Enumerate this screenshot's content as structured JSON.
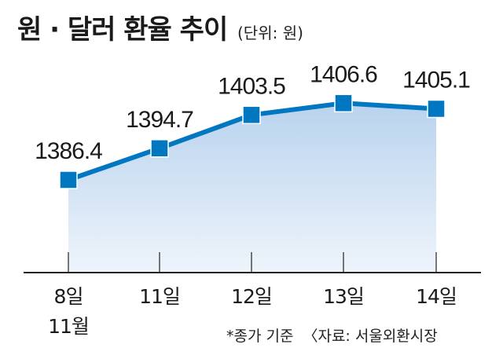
{
  "header": {
    "title": "원 · 달러 환율 추이",
    "unit": "(단위: 원)"
  },
  "footer": {
    "note": "*종가 기준",
    "source": "〈자료: 서울외환시장"
  },
  "colors": {
    "line": "#0077c0",
    "marker": "#0077c0",
    "area_top": "#b9d3ee",
    "area_bottom": "#eef4fb",
    "axis": "#222222"
  },
  "chart_data": {
    "type": "area",
    "categories": [
      "8일",
      "11일",
      "12일",
      "13일",
      "14일"
    ],
    "category_sublabels": [
      "11월",
      "",
      "",
      "",
      ""
    ],
    "values": [
      1386.4,
      1394.7,
      1403.5,
      1406.6,
      1405.1
    ],
    "value_labels": [
      "1386.4",
      "1394.7",
      "1403.5",
      "1406.6",
      "1405.1"
    ],
    "ylim": [
      1362,
      1411
    ],
    "title": "원 · 달러 환율 추이",
    "xlabel": "",
    "ylabel": "",
    "grid": false,
    "markers": "square"
  }
}
